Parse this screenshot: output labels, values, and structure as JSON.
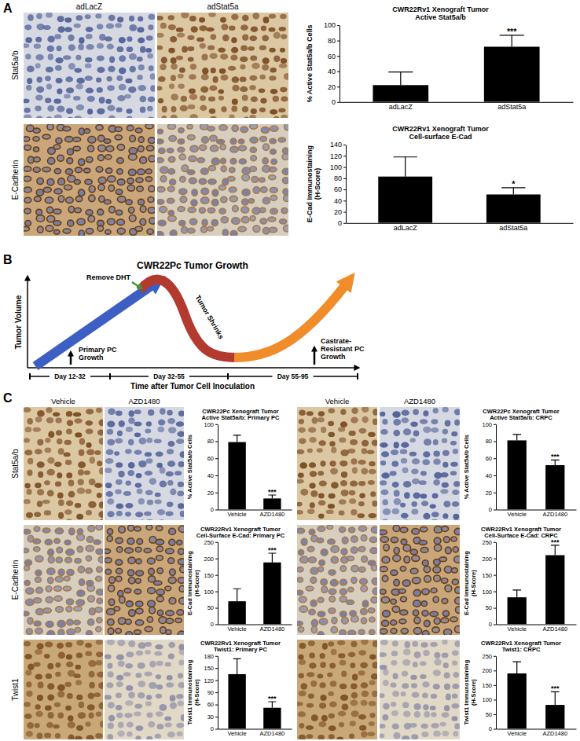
{
  "panels": {
    "A": {
      "label": "A",
      "columns": [
        "adLacZ",
        "adStat5a"
      ],
      "rows": [
        "Stat5a/b",
        "E-Cadherin"
      ]
    },
    "B": {
      "label": "B",
      "title": "CWR22Pc Tumor Growth",
      "y_label": "Tumor Volume",
      "x_label": "Time after Tumor Cell Inoculation",
      "intervention": "Remove DHT",
      "shrink_label": "Tumor Shrinks",
      "primary_label": [
        "Primary PC",
        "Growth"
      ],
      "crpc_label": [
        "Castrate-",
        "Resistant PC",
        "Growth"
      ],
      "periods": [
        "Day 12-32",
        "Day 32-55",
        "Day 55-95"
      ]
    },
    "C": {
      "label": "C",
      "columns": [
        "Vehicle",
        "AZD1480"
      ],
      "rows": [
        "Stat5a/b",
        "E-Cadherin",
        "Twist1"
      ]
    }
  },
  "chart_data": [
    {
      "type": "bar",
      "title": "CWR22Rv1 Xenograft Tumor",
      "subtitle": "Active Stat5a/b",
      "ylabel": [
        "% Active Stat5a/b Cells"
      ],
      "categories": [
        "adLacZ",
        "adStat5a"
      ],
      "values": [
        22,
        72
      ],
      "errors": [
        17,
        15
      ],
      "annotations": [
        null,
        "***"
      ],
      "color": "#000000",
      "ylim": [
        0,
        100
      ],
      "yticks": [
        0,
        20,
        40,
        60,
        80,
        100
      ]
    },
    {
      "type": "bar",
      "title": "CWR22Rv1 Xenograft Tumor",
      "subtitle": "Cell-surface E-Cad",
      "ylabel": [
        "E-Cad Immunostaining",
        "(H-Score)"
      ],
      "categories": [
        "adLacZ",
        "adStat5a"
      ],
      "values": [
        83,
        51
      ],
      "errors": [
        35,
        12
      ],
      "annotations": [
        null,
        "*"
      ],
      "color": "#000000",
      "ylim": [
        0,
        140
      ],
      "yticks": [
        0,
        20,
        40,
        60,
        80,
        100,
        120,
        140
      ]
    },
    {
      "type": "bar",
      "title": "CWR22Pc Xenograft Tumor",
      "subtitle": "Active Stat5a/b: Primary PC",
      "ylabel": [
        "% Active Stat5a/b Cells"
      ],
      "categories": [
        "Vehicle",
        "AZD1480"
      ],
      "values": [
        79,
        13
      ],
      "errors": [
        8,
        4
      ],
      "annotations": [
        null,
        "***"
      ],
      "color": "#000000",
      "ylim": [
        0,
        100
      ],
      "yticks": [
        0,
        20,
        40,
        60,
        80,
        100
      ]
    },
    {
      "type": "bar",
      "title": "CWR22Pc Xenograft Tumor",
      "subtitle": "Active Stat5a/b: CRPC",
      "ylabel": [
        "% Active Stat5a/b Cells"
      ],
      "categories": [
        "Vehicle",
        "AZD1480"
      ],
      "values": [
        81,
        52
      ],
      "errors": [
        7,
        6
      ],
      "annotations": [
        null,
        "***"
      ],
      "color": "#000000",
      "ylim": [
        0,
        100
      ],
      "yticks": [
        0,
        20,
        40,
        60,
        80,
        100
      ]
    },
    {
      "type": "bar",
      "title": "CWR22Rv1 Xenograft Tumor",
      "subtitle": "Cell-Surface E-Cad: Primary PC",
      "ylabel": [
        "E-Cad Immunostaining",
        "(H-Score)"
      ],
      "categories": [
        "Vehicle",
        "AZD1480"
      ],
      "values": [
        70,
        188
      ],
      "errors": [
        38,
        28
      ],
      "annotations": [
        null,
        "***"
      ],
      "color": "#000000",
      "ylim": [
        0,
        250
      ],
      "yticks": [
        0,
        50,
        100,
        150,
        200,
        250
      ]
    },
    {
      "type": "bar",
      "title": "CWR22Rv1 Xenograft Tumor",
      "subtitle": "Cell-Surface E-Cad: CRPC",
      "ylabel": [
        "E-Cad Immunostaining",
        "(H-Score)"
      ],
      "categories": [
        "Vehicle",
        "AZD1480"
      ],
      "values": [
        82,
        210
      ],
      "errors": [
        22,
        30
      ],
      "annotations": [
        null,
        "***"
      ],
      "color": "#000000",
      "ylim": [
        0,
        250
      ],
      "yticks": [
        0,
        50,
        100,
        150,
        200,
        250
      ]
    },
    {
      "type": "bar",
      "title": "CWR22Rv1 Xenograft Tumor",
      "subtitle": "Twist1: Primary PC",
      "ylabel": [
        "Twist1 Immunostaining",
        "(H-Score)"
      ],
      "categories": [
        "Vehicle",
        "AZD1480"
      ],
      "values": [
        135,
        52
      ],
      "errors": [
        38,
        15
      ],
      "annotations": [
        null,
        "***"
      ],
      "color": "#000000",
      "ylim": [
        0,
        180
      ],
      "yticks": [
        0,
        30,
        60,
        90,
        120,
        150,
        180
      ]
    },
    {
      "type": "bar",
      "title": "CWR22Rv1 Xenograft Tumor",
      "subtitle": "Twist1: CRPC",
      "ylabel": [
        "Twist1 Immunostaining",
        "(H-Score)"
      ],
      "categories": [
        "Vehicle",
        "AZD1480"
      ],
      "values": [
        190,
        82
      ],
      "errors": [
        40,
        45
      ],
      "annotations": [
        null,
        "***"
      ],
      "color": "#000000",
      "ylim": [
        0,
        250
      ],
      "yticks": [
        0,
        50,
        100,
        150,
        200,
        250
      ]
    }
  ]
}
